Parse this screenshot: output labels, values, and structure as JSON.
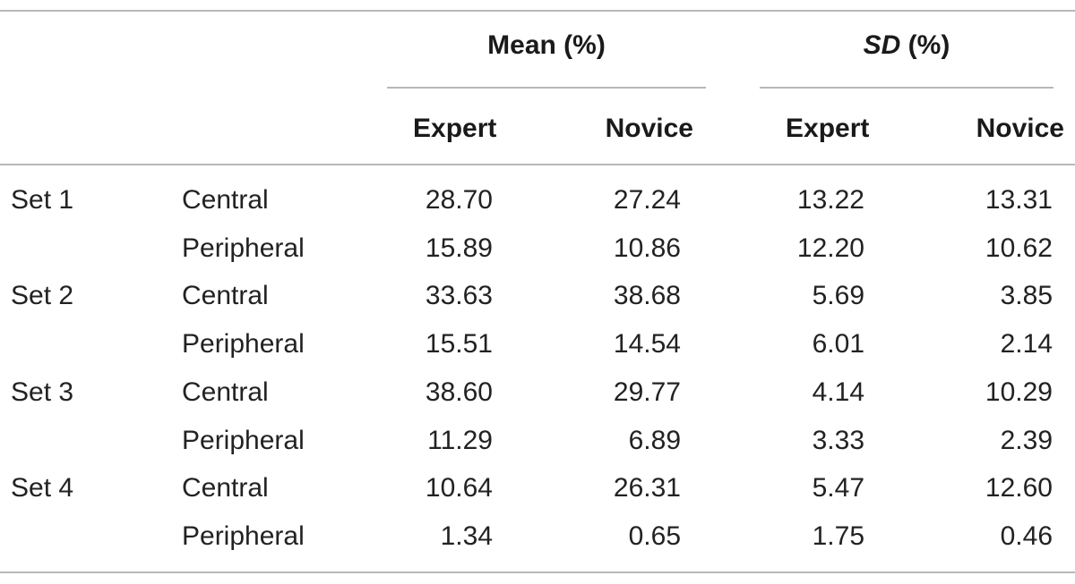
{
  "table": {
    "groups": [
      {
        "label_italic": "",
        "label": "Mean (%)"
      },
      {
        "label_italic": "SD",
        "label": " (%)"
      }
    ],
    "subheaders": [
      "Expert",
      "Novice",
      "Expert",
      "Novice"
    ],
    "rows": [
      {
        "set": "Set 1",
        "region": "Central",
        "values": [
          "28.70",
          "27.24",
          "13.22",
          "13.31"
        ]
      },
      {
        "set": "",
        "region": "Peripheral",
        "values": [
          "15.89",
          "10.86",
          "12.20",
          "10.62"
        ]
      },
      {
        "set": "Set 2",
        "region": "Central",
        "values": [
          "33.63",
          "38.68",
          "5.69",
          "3.85"
        ]
      },
      {
        "set": "",
        "region": "Peripheral",
        "values": [
          "15.51",
          "14.54",
          "6.01",
          "2.14"
        ]
      },
      {
        "set": "Set 3",
        "region": "Central",
        "values": [
          "38.60",
          "29.77",
          "4.14",
          "10.29"
        ]
      },
      {
        "set": "",
        "region": "Peripheral",
        "values": [
          "11.29",
          "6.89",
          "3.33",
          "2.39"
        ]
      },
      {
        "set": "Set 4",
        "region": "Central",
        "values": [
          "10.64",
          "26.31",
          "5.47",
          "12.60"
        ]
      },
      {
        "set": "",
        "region": "Peripheral",
        "values": [
          "1.34",
          "0.65",
          "1.75",
          "0.46"
        ]
      }
    ]
  }
}
